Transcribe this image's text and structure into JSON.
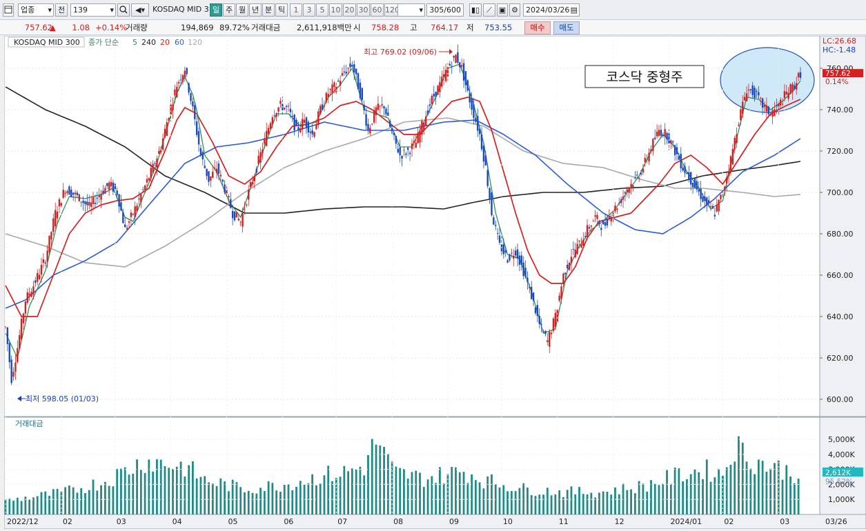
{
  "toolbar": {
    "market": "업종",
    "period_label": "전",
    "code": "139",
    "index_name": "KOSDAQ MID 300",
    "periods": [
      "일",
      "주",
      "월",
      "년",
      "분",
      "틱"
    ],
    "active_period": "일",
    "minute_options": [
      "1",
      "3",
      "5",
      "10",
      "20",
      "30",
      "60",
      "120"
    ],
    "count": "305/600",
    "date": "2024/03/26"
  },
  "info": {
    "price": "757.62",
    "change_arrow": "▲",
    "change": "1.08",
    "change_pct": "+0.14%",
    "volume_label": "거래량",
    "volume": "194,869",
    "volume_ratio": "89.72%",
    "amount_label": "거래대금",
    "amount": "2,611,918백만",
    "open_label": "시",
    "open": "758.28",
    "high_label": "고",
    "high": "764.17",
    "low_label": "저",
    "low": "753.55",
    "buy": "매수",
    "sell": "매도"
  },
  "legend": {
    "name": "KOSDAQ MID 300",
    "ma_label": "종가 단순",
    "ma_periods": [
      "5",
      "240",
      "20",
      "60",
      "120"
    ]
  },
  "annotations": {
    "high_marker": "최고 769.02 (09/06)",
    "low_marker": "최저 598.05 (01/03)",
    "title_box": "코스닥 중형주",
    "lc": "LC:26.68",
    "hc": "HC:-1.48",
    "price_tag": "757.62",
    "pct_tag": "0.14%",
    "volume_panel": "거래대금",
    "vol_tag": "2,612K",
    "vol_pct": "95.52%",
    "end_date": "03/26"
  },
  "colors": {
    "up": "#d42020",
    "down": "#1a49c4",
    "ma5": "#2f8f5a",
    "ma20": "#d61f1f",
    "ma60": "#2b5bd7",
    "ma120": "#a8a8a8",
    "ma240": "#222222",
    "volume": "#1f8a86",
    "highlight": "#cfe9f9"
  },
  "chart_data": {
    "type": "candlestick",
    "price_axis": {
      "ticks": [
        600,
        620,
        640,
        660,
        680,
        700,
        720,
        740,
        760
      ],
      "ylim": [
        593,
        773
      ]
    },
    "volume_axis": {
      "ticks": [
        "1,000K",
        "2,000K",
        "3,000K",
        "4,000K",
        "5,000K"
      ],
      "ylim": [
        0,
        5600
      ]
    },
    "x_labels": [
      "2022/12",
      "02",
      "03",
      "04",
      "05",
      "06",
      "07",
      "08",
      "09",
      "10",
      "11",
      "12",
      "2024/01",
      "02",
      "03"
    ],
    "close_path": [
      [
        0,
        635
      ],
      [
        3,
        610
      ],
      [
        6,
        625
      ],
      [
        10,
        648
      ],
      [
        14,
        655
      ],
      [
        20,
        668
      ],
      [
        25,
        690
      ],
      [
        30,
        702
      ],
      [
        36,
        698
      ],
      [
        42,
        693
      ],
      [
        48,
        700
      ],
      [
        52,
        704
      ],
      [
        56,
        700
      ],
      [
        60,
        682
      ],
      [
        64,
        690
      ],
      [
        70,
        703
      ],
      [
        74,
        712
      ],
      [
        78,
        722
      ],
      [
        82,
        738
      ],
      [
        86,
        752
      ],
      [
        90,
        760
      ],
      [
        94,
        740
      ],
      [
        98,
        718
      ],
      [
        102,
        706
      ],
      [
        106,
        712
      ],
      [
        110,
        702
      ],
      [
        114,
        690
      ],
      [
        118,
        686
      ],
      [
        122,
        700
      ],
      [
        126,
        712
      ],
      [
        130,
        725
      ],
      [
        134,
        738
      ],
      [
        138,
        742
      ],
      [
        142,
        740
      ],
      [
        146,
        730
      ],
      [
        150,
        735
      ],
      [
        154,
        728
      ],
      [
        158,
        740
      ],
      [
        162,
        748
      ],
      [
        166,
        752
      ],
      [
        170,
        758
      ],
      [
        174,
        762
      ],
      [
        178,
        748
      ],
      [
        182,
        730
      ],
      [
        186,
        740
      ],
      [
        190,
        742
      ],
      [
        194,
        728
      ],
      [
        198,
        718
      ],
      [
        202,
        720
      ],
      [
        206,
        724
      ],
      [
        210,
        735
      ],
      [
        214,
        745
      ],
      [
        218,
        752
      ],
      [
        222,
        760
      ],
      [
        226,
        766
      ],
      [
        229,
        760
      ],
      [
        232,
        748
      ],
      [
        235,
        738
      ],
      [
        238,
        728
      ],
      [
        241,
        712
      ],
      [
        244,
        690
      ],
      [
        248,
        674
      ],
      [
        252,
        668
      ],
      [
        256,
        672
      ],
      [
        260,
        662
      ],
      [
        264,
        650
      ],
      [
        268,
        636
      ],
      [
        272,
        628
      ],
      [
        276,
        640
      ],
      [
        280,
        660
      ],
      [
        284,
        670
      ],
      [
        288,
        675
      ],
      [
        292,
        682
      ],
      [
        296,
        688
      ],
      [
        300,
        683
      ],
      [
        304,
        690
      ],
      [
        308,
        695
      ],
      [
        312,
        702
      ],
      [
        316,
        706
      ],
      [
        320,
        712
      ],
      [
        324,
        722
      ],
      [
        328,
        730
      ],
      [
        332,
        728
      ],
      [
        336,
        720
      ],
      [
        340,
        712
      ],
      [
        344,
        706
      ],
      [
        348,
        700
      ],
      [
        352,
        694
      ],
      [
        356,
        690
      ],
      [
        360,
        700
      ],
      [
        364,
        716
      ],
      [
        368,
        735
      ],
      [
        372,
        750
      ],
      [
        376,
        748
      ],
      [
        380,
        742
      ],
      [
        384,
        738
      ],
      [
        388,
        742
      ],
      [
        392,
        748
      ],
      [
        396,
        752
      ],
      [
        399,
        757.62
      ]
    ],
    "ma5": [
      [
        0,
        632
      ],
      [
        6,
        620
      ],
      [
        12,
        645
      ],
      [
        20,
        662
      ],
      [
        26,
        685
      ],
      [
        32,
        698
      ],
      [
        40,
        697
      ],
      [
        48,
        699
      ],
      [
        54,
        702
      ],
      [
        60,
        688
      ],
      [
        64,
        686
      ],
      [
        70,
        700
      ],
      [
        76,
        714
      ],
      [
        82,
        734
      ],
      [
        86,
        748
      ],
      [
        90,
        756
      ],
      [
        95,
        745
      ],
      [
        100,
        718
      ],
      [
        106,
        710
      ],
      [
        112,
        696
      ],
      [
        118,
        688
      ],
      [
        124,
        705
      ],
      [
        130,
        722
      ],
      [
        136,
        738
      ],
      [
        142,
        738
      ],
      [
        148,
        732
      ],
      [
        156,
        734
      ],
      [
        162,
        746
      ],
      [
        168,
        752
      ],
      [
        174,
        760
      ],
      [
        180,
        740
      ],
      [
        186,
        738
      ],
      [
        192,
        736
      ],
      [
        198,
        722
      ],
      [
        204,
        722
      ],
      [
        210,
        734
      ],
      [
        216,
        746
      ],
      [
        222,
        760
      ],
      [
        228,
        762
      ],
      [
        234,
        746
      ],
      [
        240,
        724
      ],
      [
        246,
        690
      ],
      [
        252,
        670
      ],
      [
        258,
        668
      ],
      [
        264,
        652
      ],
      [
        270,
        632
      ],
      [
        276,
        634
      ],
      [
        282,
        662
      ],
      [
        288,
        674
      ],
      [
        294,
        682
      ],
      [
        300,
        686
      ],
      [
        306,
        692
      ],
      [
        312,
        700
      ],
      [
        318,
        708
      ],
      [
        324,
        720
      ],
      [
        330,
        728
      ],
      [
        336,
        722
      ],
      [
        342,
        710
      ],
      [
        348,
        702
      ],
      [
        354,
        692
      ],
      [
        360,
        696
      ],
      [
        366,
        722
      ],
      [
        372,
        746
      ],
      [
        378,
        745
      ],
      [
        384,
        740
      ],
      [
        390,
        744
      ],
      [
        396,
        750
      ],
      [
        399,
        754
      ]
    ],
    "ma20": [
      [
        0,
        655
      ],
      [
        8,
        640
      ],
      [
        16,
        640
      ],
      [
        24,
        660
      ],
      [
        32,
        680
      ],
      [
        40,
        690
      ],
      [
        48,
        694
      ],
      [
        56,
        696
      ],
      [
        64,
        697
      ],
      [
        72,
        702
      ],
      [
        80,
        720
      ],
      [
        86,
        735
      ],
      [
        90,
        741
      ],
      [
        96,
        738
      ],
      [
        104,
        724
      ],
      [
        112,
        708
      ],
      [
        120,
        704
      ],
      [
        128,
        710
      ],
      [
        136,
        722
      ],
      [
        144,
        732
      ],
      [
        152,
        733
      ],
      [
        160,
        736
      ],
      [
        168,
        742
      ],
      [
        176,
        744
      ],
      [
        184,
        740
      ],
      [
        192,
        734
      ],
      [
        200,
        728
      ],
      [
        208,
        728
      ],
      [
        216,
        736
      ],
      [
        224,
        744
      ],
      [
        232,
        746
      ],
      [
        238,
        744
      ],
      [
        244,
        730
      ],
      [
        250,
        710
      ],
      [
        256,
        690
      ],
      [
        262,
        672
      ],
      [
        268,
        660
      ],
      [
        274,
        656
      ],
      [
        280,
        656
      ],
      [
        286,
        664
      ],
      [
        292,
        678
      ],
      [
        298,
        686
      ],
      [
        306,
        688
      ],
      [
        314,
        690
      ],
      [
        320,
        696
      ],
      [
        328,
        704
      ],
      [
        336,
        714
      ],
      [
        344,
        718
      ],
      [
        352,
        712
      ],
      [
        360,
        704
      ],
      [
        368,
        716
      ],
      [
        376,
        728
      ],
      [
        384,
        738
      ],
      [
        392,
        742
      ],
      [
        399,
        745
      ]
    ],
    "ma60": [
      [
        0,
        644
      ],
      [
        10,
        648
      ],
      [
        24,
        660
      ],
      [
        40,
        667
      ],
      [
        56,
        676
      ],
      [
        72,
        694
      ],
      [
        90,
        714
      ],
      [
        106,
        722
      ],
      [
        122,
        724
      ],
      [
        140,
        728
      ],
      [
        160,
        734
      ],
      [
        180,
        730
      ],
      [
        200,
        730
      ],
      [
        220,
        734
      ],
      [
        236,
        735
      ],
      [
        250,
        728
      ],
      [
        266,
        718
      ],
      [
        282,
        704
      ],
      [
        300,
        690
      ],
      [
        316,
        682
      ],
      [
        330,
        680
      ],
      [
        344,
        688
      ],
      [
        356,
        697
      ],
      [
        370,
        710
      ],
      [
        386,
        718
      ],
      [
        399,
        726
      ]
    ],
    "ma120": [
      [
        0,
        680
      ],
      [
        20,
        674
      ],
      [
        40,
        666
      ],
      [
        60,
        664
      ],
      [
        80,
        674
      ],
      [
        100,
        686
      ],
      [
        120,
        700
      ],
      [
        140,
        712
      ],
      [
        160,
        720
      ],
      [
        180,
        726
      ],
      [
        200,
        734
      ],
      [
        222,
        736
      ],
      [
        240,
        732
      ],
      [
        260,
        720
      ],
      [
        280,
        714
      ],
      [
        300,
        712
      ],
      [
        320,
        706
      ],
      [
        336,
        702
      ],
      [
        350,
        702
      ],
      [
        370,
        700
      ],
      [
        386,
        698
      ],
      [
        399,
        699
      ]
    ],
    "ma240": [
      [
        0,
        751
      ],
      [
        20,
        740
      ],
      [
        40,
        732
      ],
      [
        60,
        722
      ],
      [
        80,
        708
      ],
      [
        100,
        700
      ],
      [
        120,
        690
      ],
      [
        140,
        690
      ],
      [
        160,
        692
      ],
      [
        180,
        693
      ],
      [
        200,
        693
      ],
      [
        220,
        692
      ],
      [
        234,
        695
      ],
      [
        250,
        698
      ],
      [
        270,
        700
      ],
      [
        290,
        700
      ],
      [
        310,
        702
      ],
      [
        330,
        703
      ],
      [
        350,
        708
      ],
      [
        370,
        711
      ],
      [
        386,
        713
      ],
      [
        399,
        715
      ]
    ],
    "volume_profile": [
      [
        0,
        900
      ],
      [
        30,
        1500
      ],
      [
        50,
        2200
      ],
      [
        60,
        2900
      ],
      [
        70,
        3600
      ],
      [
        80,
        3400
      ],
      [
        90,
        3200
      ],
      [
        100,
        2300
      ],
      [
        110,
        2000
      ],
      [
        120,
        1700
      ],
      [
        140,
        2000
      ],
      [
        160,
        2600
      ],
      [
        170,
        2800
      ],
      [
        180,
        3200
      ],
      [
        186,
        4900
      ],
      [
        195,
        2800
      ],
      [
        210,
        2400
      ],
      [
        230,
        2900
      ],
      [
        240,
        2300
      ],
      [
        260,
        1700
      ],
      [
        280,
        1500
      ],
      [
        300,
        1500
      ],
      [
        310,
        1700
      ],
      [
        320,
        1900
      ],
      [
        330,
        2300
      ],
      [
        340,
        2700
      ],
      [
        350,
        3000
      ],
      [
        360,
        2700
      ],
      [
        366,
        4600
      ],
      [
        375,
        3600
      ],
      [
        385,
        3200
      ],
      [
        399,
        2612
      ]
    ]
  }
}
